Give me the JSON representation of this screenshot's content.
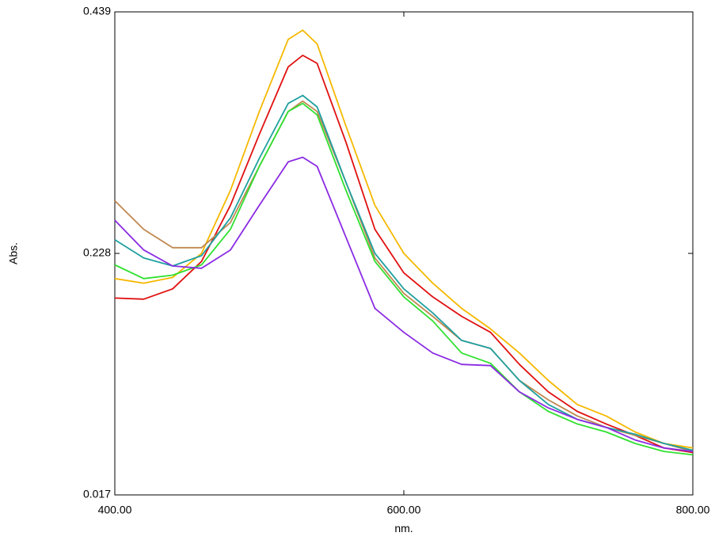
{
  "chart_data": {
    "type": "line",
    "xlabel": "nm.",
    "ylabel": "Abs.",
    "x": [
      400,
      420,
      440,
      460,
      480,
      500,
      520,
      530,
      540,
      560,
      580,
      600,
      620,
      640,
      660,
      680,
      700,
      720,
      740,
      760,
      780,
      800
    ],
    "series": [
      {
        "color": "#f5b800",
        "values": [
          0.206,
          0.202,
          0.207,
          0.228,
          0.283,
          0.352,
          0.415,
          0.423,
          0.411,
          0.339,
          0.27,
          0.228,
          0.202,
          0.18,
          0.162,
          0.141,
          0.117,
          0.096,
          0.086,
          0.072,
          0.062,
          0.058
        ]
      },
      {
        "color": "#e01010",
        "values": [
          0.189,
          0.188,
          0.197,
          0.221,
          0.27,
          0.332,
          0.391,
          0.401,
          0.394,
          0.325,
          0.249,
          0.211,
          0.19,
          0.173,
          0.159,
          0.131,
          0.107,
          0.09,
          0.079,
          0.069,
          0.058,
          0.054
        ]
      },
      {
        "color": "#c08850",
        "values": [
          0.274,
          0.249,
          0.233,
          0.233,
          0.255,
          0.304,
          0.352,
          0.361,
          0.352,
          0.29,
          0.224,
          0.193,
          0.173,
          0.152,
          0.145,
          0.117,
          0.1,
          0.086,
          0.076,
          0.069,
          0.062,
          0.055
        ]
      },
      {
        "color": "#20a0a0",
        "values": [
          0.24,
          0.224,
          0.217,
          0.226,
          0.259,
          0.311,
          0.359,
          0.366,
          0.356,
          0.29,
          0.228,
          0.197,
          0.176,
          0.152,
          0.145,
          0.117,
          0.096,
          0.083,
          0.076,
          0.07,
          0.062,
          0.056
        ]
      },
      {
        "color": "#30e030",
        "values": [
          0.218,
          0.206,
          0.209,
          0.218,
          0.249,
          0.304,
          0.352,
          0.359,
          0.349,
          0.283,
          0.221,
          0.19,
          0.169,
          0.141,
          0.132,
          0.107,
          0.09,
          0.079,
          0.072,
          0.062,
          0.055,
          0.052
        ]
      },
      {
        "color": "#8a2be2",
        "values": [
          0.257,
          0.231,
          0.217,
          0.215,
          0.231,
          0.27,
          0.308,
          0.312,
          0.304,
          0.242,
          0.18,
          0.159,
          0.141,
          0.131,
          0.13,
          0.107,
          0.093,
          0.083,
          0.076,
          0.065,
          0.058,
          0.055
        ]
      }
    ],
    "xlim": [
      400,
      800
    ],
    "xticks": [
      {
        "value": 400,
        "label": "400.00"
      },
      {
        "value": 600,
        "label": "600.00"
      },
      {
        "value": 800,
        "label": "800.00"
      }
    ],
    "ylim": [
      0.017,
      0.439
    ],
    "yticks": [
      0.017,
      0.228,
      0.439
    ],
    "grid": false
  }
}
